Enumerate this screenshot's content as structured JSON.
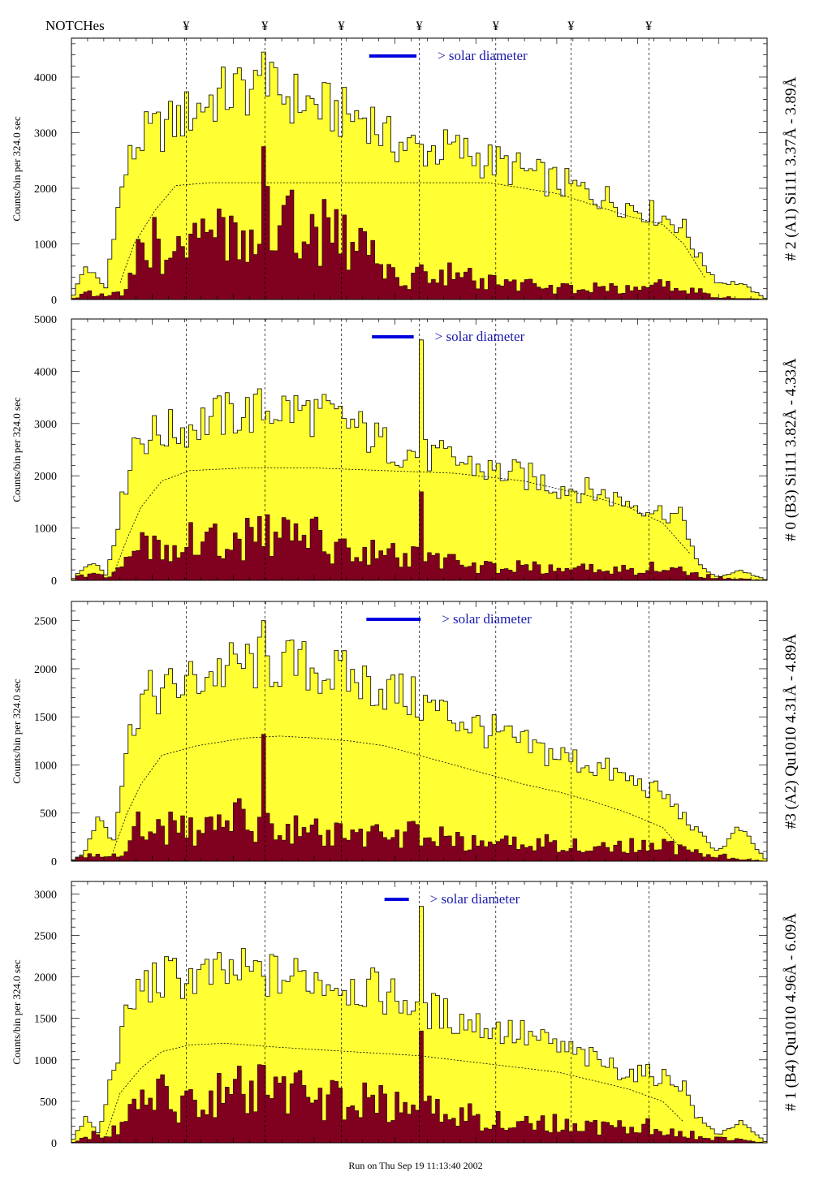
{
  "header": {
    "notches_label": "NOTCHes",
    "notch_symbol": "¥"
  },
  "footer": {
    "run_text": "Run on Thu Sep 19 11:13:40 2002"
  },
  "colors": {
    "upper_fill": "#ffff33",
    "lower_fill": "#800020",
    "outline": "#000000",
    "bar": "#0000dd",
    "label_text": "#1a1aaa"
  },
  "chart_data": [
    {
      "type": "area",
      "title": "# 2 (A1) Si111  3.37Å - 3.89Å",
      "ylabel": "Counts/bin per    324.0 sec",
      "annotation": "> solar diameter",
      "ylim": [
        0,
        4700
      ],
      "yticks": [
        0,
        1000,
        2000,
        3000,
        4000
      ],
      "notches": [
        0.165,
        0.278,
        0.388,
        0.5,
        0.61,
        0.718,
        0.83
      ],
      "bar_range": [
        0.428,
        0.496
      ],
      "spike_pos": 0.278,
      "spike_val": 4450,
      "series": [
        {
          "name": "total",
          "x": [
            0,
            0.02,
            0.05,
            0.06,
            0.08,
            0.1,
            0.15,
            0.2,
            0.25,
            0.3,
            0.35,
            0.4,
            0.43,
            0.45,
            0.5,
            0.55,
            0.6,
            0.65,
            0.7,
            0.75,
            0.8,
            0.85,
            0.88,
            0.9,
            0.93,
            0.96,
            1
          ],
          "values": [
            0,
            600,
            200,
            1200,
            2400,
            2900,
            3200,
            3600,
            3800,
            3700,
            3500,
            3300,
            3300,
            2900,
            2700,
            2700,
            2500,
            2300,
            2100,
            1900,
            1700,
            1500,
            1300,
            800,
            300,
            300,
            0
          ]
        },
        {
          "name": "lower",
          "x": [
            0,
            0.02,
            0.05,
            0.08,
            0.1,
            0.13,
            0.18,
            0.22,
            0.26,
            0.3,
            0.35,
            0.4,
            0.43,
            0.45,
            0.47,
            0.5,
            0.55,
            0.6,
            0.65,
            0.7,
            0.75,
            0.8,
            0.85,
            0.9,
            0.93,
            1
          ],
          "values": [
            0,
            150,
            50,
            150,
            900,
            1000,
            1000,
            1100,
            1500,
            1300,
            1300,
            1000,
            900,
            500,
            300,
            500,
            450,
            300,
            250,
            200,
            200,
            180,
            250,
            150,
            50,
            0
          ]
        },
        {
          "name": "dashed",
          "x": [
            0.07,
            0.09,
            0.12,
            0.15,
            0.2,
            0.3,
            0.4,
            0.5,
            0.6,
            0.7,
            0.75,
            0.8,
            0.85,
            0.88,
            0.91
          ],
          "values": [
            300,
            1000,
            1600,
            2050,
            2100,
            2100,
            2100,
            2100,
            2100,
            1900,
            1700,
            1500,
            1350,
            1000,
            400
          ]
        }
      ]
    },
    {
      "type": "area",
      "title": "# 0 (B3) Si111  3.82Å - 4.33Å",
      "ylabel": "Counts/bin per    324.0 sec",
      "annotation": "> solar diameter",
      "ylim": [
        0,
        5000
      ],
      "yticks": [
        0,
        1000,
        2000,
        3000,
        4000,
        5000
      ],
      "notches": [
        0.165,
        0.278,
        0.388,
        0.5,
        0.61,
        0.718,
        0.83
      ],
      "bar_range": [
        0.432,
        0.492
      ],
      "spike_pos": 0.5,
      "spike_val": 4600,
      "series": [
        {
          "name": "total",
          "x": [
            0,
            0.03,
            0.05,
            0.07,
            0.09,
            0.12,
            0.16,
            0.2,
            0.25,
            0.3,
            0.35,
            0.4,
            0.45,
            0.5,
            0.55,
            0.6,
            0.65,
            0.7,
            0.75,
            0.8,
            0.85,
            0.88,
            0.9,
            0.93,
            0.96,
            1
          ],
          "values": [
            0,
            400,
            100,
            1300,
            2700,
            2800,
            2900,
            3100,
            3200,
            3300,
            3200,
            3000,
            2600,
            2400,
            2300,
            2100,
            2000,
            1800,
            1700,
            1500,
            1300,
            1200,
            300,
            50,
            200,
            0
          ]
        },
        {
          "name": "lower",
          "x": [
            0,
            0.03,
            0.05,
            0.07,
            0.1,
            0.15,
            0.2,
            0.25,
            0.3,
            0.35,
            0.4,
            0.45,
            0.48,
            0.52,
            0.56,
            0.6,
            0.65,
            0.7,
            0.75,
            0.8,
            0.85,
            0.9,
            0.93,
            1
          ],
          "values": [
            0,
            200,
            50,
            200,
            600,
            800,
            700,
            800,
            900,
            800,
            600,
            500,
            450,
            400,
            300,
            250,
            250,
            200,
            220,
            200,
            300,
            100,
            50,
            0
          ]
        },
        {
          "name": "dashed",
          "x": [
            0.06,
            0.08,
            0.1,
            0.13,
            0.17,
            0.25,
            0.35,
            0.45,
            0.55,
            0.65,
            0.7,
            0.75,
            0.8,
            0.85,
            0.89
          ],
          "values": [
            100,
            800,
            1400,
            1900,
            2100,
            2150,
            2150,
            2100,
            2050,
            1900,
            1750,
            1600,
            1400,
            1100,
            500
          ]
        }
      ]
    },
    {
      "type": "area",
      "title": "#3 (A2) Qu1010  4.31Å - 4.89Å",
      "ylabel": "Counts/bin per    324.0 sec",
      "annotation": "> solar diameter",
      "ylim": [
        0,
        2700
      ],
      "yticks": [
        0,
        500,
        1000,
        1500,
        2000,
        2500
      ],
      "notches": [
        0.165,
        0.278,
        0.388,
        0.5,
        0.61,
        0.718,
        0.83
      ],
      "bar_range": [
        0.424,
        0.502
      ],
      "spike_pos": 0.278,
      "spike_val": 2500,
      "series": [
        {
          "name": "total",
          "x": [
            0,
            0.02,
            0.04,
            0.06,
            0.08,
            0.1,
            0.15,
            0.2,
            0.25,
            0.3,
            0.35,
            0.4,
            0.45,
            0.5,
            0.55,
            0.6,
            0.65,
            0.7,
            0.75,
            0.8,
            0.85,
            0.9,
            0.93,
            0.96,
            1
          ],
          "values": [
            0,
            100,
            500,
            200,
            1200,
            1700,
            1800,
            1950,
            2050,
            2050,
            2000,
            1900,
            1800,
            1650,
            1500,
            1350,
            1200,
            1100,
            1000,
            850,
            700,
            300,
            100,
            350,
            0
          ]
        },
        {
          "name": "lower",
          "x": [
            0,
            0.03,
            0.06,
            0.08,
            0.1,
            0.14,
            0.18,
            0.22,
            0.26,
            0.3,
            0.35,
            0.4,
            0.45,
            0.5,
            0.55,
            0.6,
            0.65,
            0.7,
            0.75,
            0.8,
            0.85,
            0.9,
            1
          ],
          "values": [
            0,
            100,
            50,
            100,
            400,
            350,
            300,
            400,
            450,
            350,
            300,
            250,
            250,
            300,
            200,
            180,
            180,
            200,
            150,
            150,
            180,
            80,
            0
          ]
        },
        {
          "name": "dashed",
          "x": [
            0.06,
            0.08,
            0.1,
            0.13,
            0.18,
            0.25,
            0.3,
            0.35,
            0.4,
            0.45,
            0.5,
            0.55,
            0.6,
            0.65,
            0.7,
            0.75,
            0.8,
            0.85,
            0.88
          ],
          "values": [
            100,
            500,
            800,
            1100,
            1200,
            1280,
            1300,
            1280,
            1250,
            1200,
            1100,
            1000,
            900,
            800,
            720,
            620,
            500,
            350,
            100
          ]
        }
      ]
    },
    {
      "type": "area",
      "title": "# 1 (B4) Qu1010 4.96Å - 6.09Å",
      "ylabel": "Counts/bin per    324.0 sec",
      "annotation": "> solar diameter",
      "ylim": [
        0,
        3150
      ],
      "yticks": [
        0,
        500,
        1000,
        1500,
        2000,
        2500,
        3000
      ],
      "notches": [
        0.165,
        0.278,
        0.388,
        0.5,
        0.61,
        0.718,
        0.83
      ],
      "bar_range": [
        0.45,
        0.485
      ],
      "spike_pos": 0.5,
      "spike_val": 2850,
      "series": [
        {
          "name": "total",
          "x": [
            0,
            0.02,
            0.04,
            0.06,
            0.08,
            0.1,
            0.15,
            0.2,
            0.25,
            0.3,
            0.35,
            0.4,
            0.45,
            0.5,
            0.55,
            0.6,
            0.65,
            0.7,
            0.75,
            0.8,
            0.85,
            0.88,
            0.9,
            0.93,
            0.96,
            1
          ],
          "values": [
            0,
            300,
            100,
            900,
            1500,
            1900,
            2000,
            2000,
            2050,
            2000,
            2000,
            1900,
            1800,
            1650,
            1500,
            1400,
            1300,
            1150,
            1000,
            850,
            800,
            700,
            300,
            100,
            250,
            0
          ]
        },
        {
          "name": "lower",
          "x": [
            0,
            0.03,
            0.05,
            0.08,
            0.1,
            0.14,
            0.18,
            0.22,
            0.26,
            0.3,
            0.35,
            0.4,
            0.45,
            0.5,
            0.55,
            0.6,
            0.65,
            0.7,
            0.75,
            0.8,
            0.85,
            0.9,
            1
          ],
          "values": [
            0,
            100,
            50,
            300,
            500,
            550,
            500,
            600,
            650,
            600,
            550,
            500,
            450,
            400,
            350,
            300,
            250,
            220,
            200,
            180,
            200,
            80,
            0
          ]
        },
        {
          "name": "dashed",
          "x": [
            0.05,
            0.07,
            0.1,
            0.13,
            0.17,
            0.22,
            0.3,
            0.4,
            0.5,
            0.6,
            0.7,
            0.75,
            0.8,
            0.85,
            0.88
          ],
          "values": [
            100,
            600,
            900,
            1100,
            1180,
            1200,
            1150,
            1100,
            1050,
            950,
            850,
            750,
            650,
            500,
            250
          ]
        }
      ]
    }
  ]
}
